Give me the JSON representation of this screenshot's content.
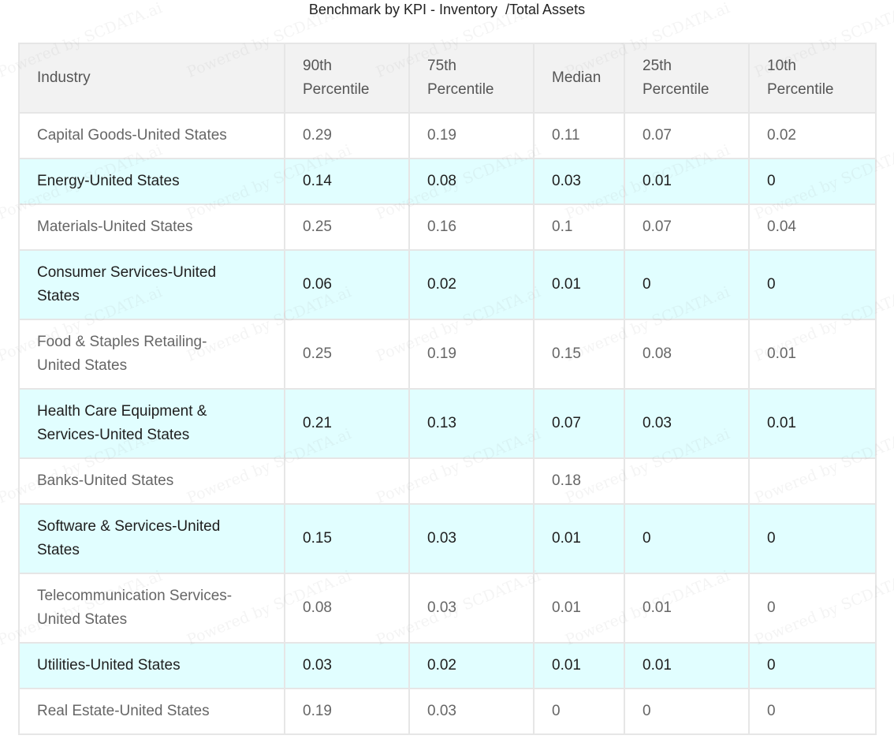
{
  "chart_data": {
    "type": "table",
    "title": "Benchmark by KPI - Inventory  /Total Assets",
    "columns": [
      "Industry",
      "90th Percentile",
      "75th Percentile",
      "Median",
      "25th Percentile",
      "10th Percentile"
    ],
    "rows": [
      {
        "industry": "Capital Goods-United States",
        "p90": "0.29",
        "p75": "0.19",
        "median": "0.11",
        "p25": "0.07",
        "p10": "0.02"
      },
      {
        "industry": "Energy-United States",
        "p90": "0.14",
        "p75": "0.08",
        "median": "0.03",
        "p25": "0.01",
        "p10": "0"
      },
      {
        "industry": "Materials-United States",
        "p90": "0.25",
        "p75": "0.16",
        "median": "0.1",
        "p25": "0.07",
        "p10": "0.04"
      },
      {
        "industry": "Consumer Services-United States",
        "p90": "0.06",
        "p75": "0.02",
        "median": "0.01",
        "p25": "0",
        "p10": "0"
      },
      {
        "industry": "Food & Staples Retailing-United States",
        "p90": "0.25",
        "p75": "0.19",
        "median": "0.15",
        "p25": "0.08",
        "p10": "0.01"
      },
      {
        "industry": "Health Care Equipment & Services-United States",
        "p90": "0.21",
        "p75": "0.13",
        "median": "0.07",
        "p25": "0.03",
        "p10": "0.01"
      },
      {
        "industry": "Banks-United States",
        "p90": "",
        "p75": "",
        "median": "0.18",
        "p25": "",
        "p10": ""
      },
      {
        "industry": "Software & Services-United States",
        "p90": "0.15",
        "p75": "0.03",
        "median": "0.01",
        "p25": "0",
        "p10": "0"
      },
      {
        "industry": "Telecommunication Services-United States",
        "p90": "0.08",
        "p75": "0.03",
        "median": "0.01",
        "p25": "0.01",
        "p10": "0"
      },
      {
        "industry": "Utilities-United States",
        "p90": "0.03",
        "p75": "0.02",
        "median": "0.01",
        "p25": "0.01",
        "p10": "0"
      },
      {
        "industry": "Real Estate-United States",
        "p90": "0.19",
        "p75": "0.03",
        "median": "0",
        "p25": "0",
        "p10": "0"
      }
    ]
  },
  "watermark": "Powered by SCDATA.ai",
  "colors": {
    "header_bg": "#f2f2f2",
    "row_alt_bg": "#e1feff",
    "border": "#e6e6e6"
  }
}
